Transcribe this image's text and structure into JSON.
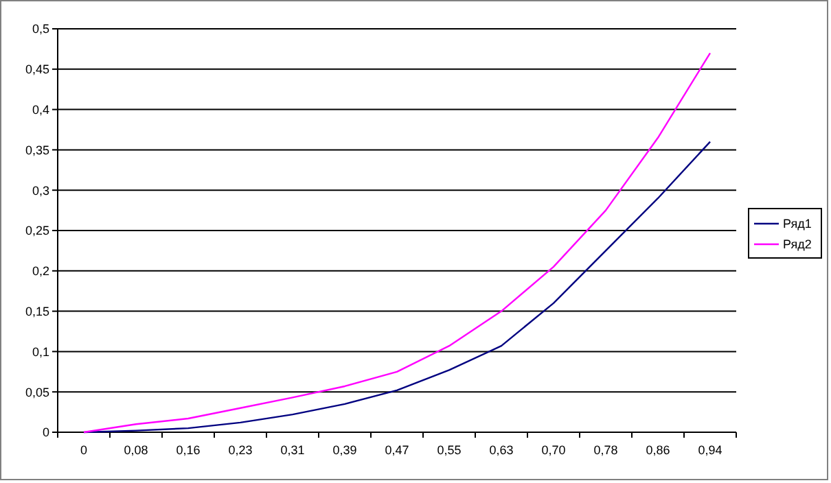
{
  "chart_data": {
    "type": "line",
    "categories": [
      "0",
      "0,08",
      "0,16",
      "0,23",
      "0,31",
      "0,39",
      "0,47",
      "0,55",
      "0,63",
      "0,70",
      "0,78",
      "0,86",
      "0,94"
    ],
    "series": [
      {
        "name": "Ряд1",
        "color": "#000080",
        "values": [
          0,
          0.002,
          0.005,
          0.012,
          0.022,
          0.035,
          0.052,
          0.077,
          0.107,
          0.16,
          0.225,
          0.29,
          0.36
        ]
      },
      {
        "name": "Ряд2",
        "color": "#ff00ff",
        "values": [
          0,
          0.01,
          0.017,
          0.03,
          0.043,
          0.057,
          0.075,
          0.107,
          0.15,
          0.205,
          0.275,
          0.365,
          0.47
        ]
      }
    ],
    "ylim": [
      0,
      0.5
    ],
    "yticks": [
      0,
      {
        "value": 0.05,
        "label": "0,05"
      },
      {
        "value": 0.1,
        "label": "0,1"
      },
      {
        "value": 0.15,
        "label": "0,15"
      },
      {
        "value": 0.2,
        "label": "0,2"
      },
      {
        "value": 0.25,
        "label": "0,25"
      },
      {
        "value": 0.3,
        "label": "0,3"
      },
      {
        "value": 0.35,
        "label": "0,35"
      },
      {
        "value": 0.4,
        "label": "0,4"
      },
      {
        "value": 0.45,
        "label": "0,45"
      },
      {
        "value": 0.5,
        "label": "0,5"
      }
    ],
    "grid": "y",
    "legend": "right",
    "marker": "none",
    "line_style": "solid"
  }
}
